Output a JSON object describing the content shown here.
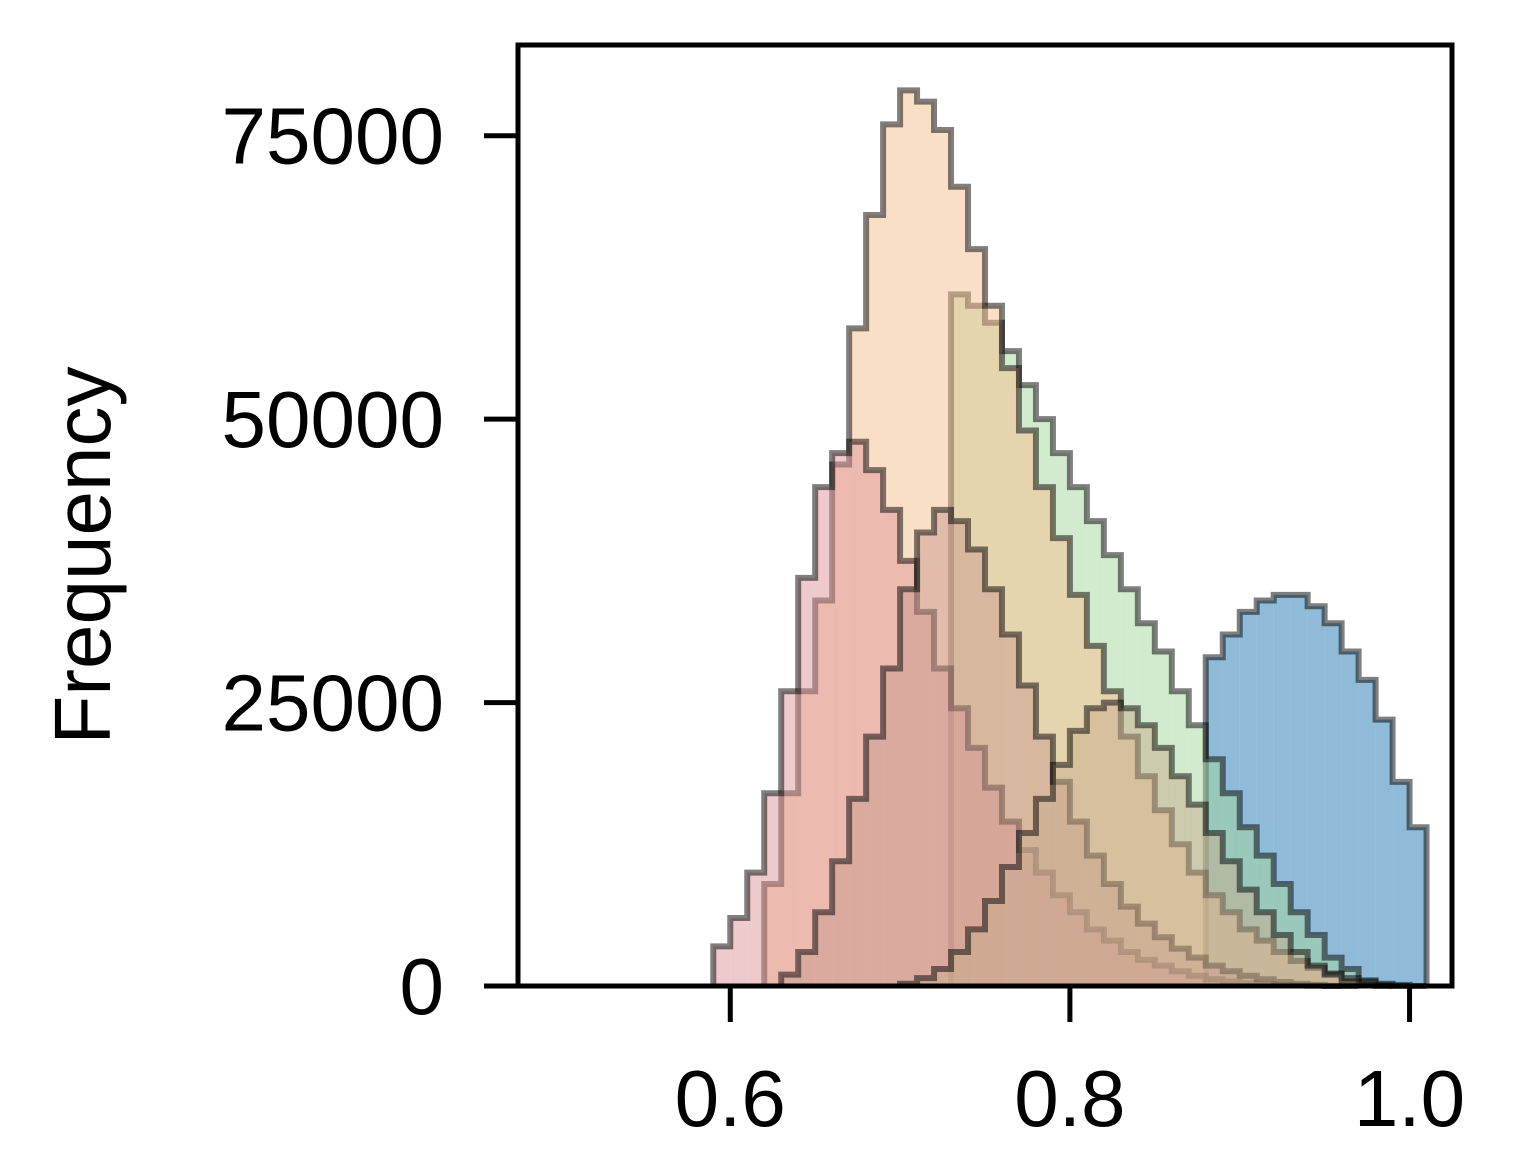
{
  "chart_data": {
    "type": "histogram",
    "ylabel": "Frequency",
    "xlabel": "",
    "xlim": [
      0.475,
      1.025
    ],
    "ylim": [
      0,
      83000
    ],
    "xticks": [
      0.6,
      0.8,
      1.0
    ],
    "xtick_labels": [
      "0.6",
      "0.8",
      "1.0"
    ],
    "yticks": [
      0,
      25000,
      50000,
      75000
    ],
    "ytick_labels": [
      "0",
      "25000",
      "50000",
      "75000"
    ],
    "bin_width": 0.01,
    "grid": false,
    "legend": "none",
    "series": [
      {
        "color": "#1f77b4",
        "bin_start": 0.88,
        "values": [
          29000,
          31000,
          33000,
          34000,
          34500,
          34500,
          33500,
          32000,
          29500,
          27000,
          23500,
          18000,
          14000
        ]
      },
      {
        "color": "#a6d79f",
        "bin_start": 0.73,
        "values": [
          61000,
          60000,
          58500,
          56000,
          53000,
          50000,
          47000,
          44000,
          41000,
          38000,
          35000,
          32000,
          29500,
          26000,
          23000,
          20000,
          17000,
          14000,
          11500,
          9000,
          6500,
          4500,
          2500,
          1500,
          500,
          100,
          0
        ]
      },
      {
        "color": "#f5c08f",
        "bin_start": 0.62,
        "values": [
          9000,
          17000,
          26000,
          34000,
          46000,
          58000,
          68000,
          76000,
          79000,
          78000,
          75500,
          70500,
          65000,
          60000,
          54500,
          49000,
          44000,
          39500,
          34500,
          30000,
          26000,
          22000,
          18500,
          15500,
          12500,
          10000,
          8000,
          6500,
          5000,
          4000,
          3000,
          2200,
          1600,
          1100,
          700,
          400,
          200,
          100,
          0
        ]
      },
      {
        "color": "#e0969a",
        "bin_start": 0.59,
        "values": [
          3500,
          6000,
          10000,
          17000,
          26000,
          36000,
          44000,
          47000,
          48000,
          45500,
          42000,
          37500,
          33000,
          28000,
          24500,
          21000,
          17500,
          14500,
          12000,
          10000,
          8000,
          6500,
          5000,
          4000,
          3000,
          2300,
          1800,
          1300,
          900,
          600,
          400,
          250,
          150,
          80,
          40,
          20,
          10,
          0
        ]
      },
      {
        "color": "#c99a8e",
        "bin_start": 0.63,
        "values": [
          1000,
          3000,
          6500,
          11000,
          16500,
          22000,
          28000,
          35000,
          40000,
          42000,
          41000,
          38500,
          35000,
          31000,
          26500,
          22000,
          18000,
          14500,
          11500,
          9000,
          7000,
          5500,
          4300,
          3300,
          2500,
          1800,
          1300,
          900,
          600,
          350,
          200,
          100,
          0
        ]
      },
      {
        "color": "#c8ac8c",
        "bin_start": 0.7,
        "values": [
          200,
          700,
          1500,
          3000,
          5000,
          7500,
          10500,
          13500,
          16500,
          19500,
          22500,
          24500,
          25000,
          24500,
          23000,
          21000,
          18500,
          16000,
          13500,
          11000,
          8500,
          6500,
          4500,
          3000,
          1800,
          1000,
          400,
          100,
          0
        ]
      }
    ]
  }
}
